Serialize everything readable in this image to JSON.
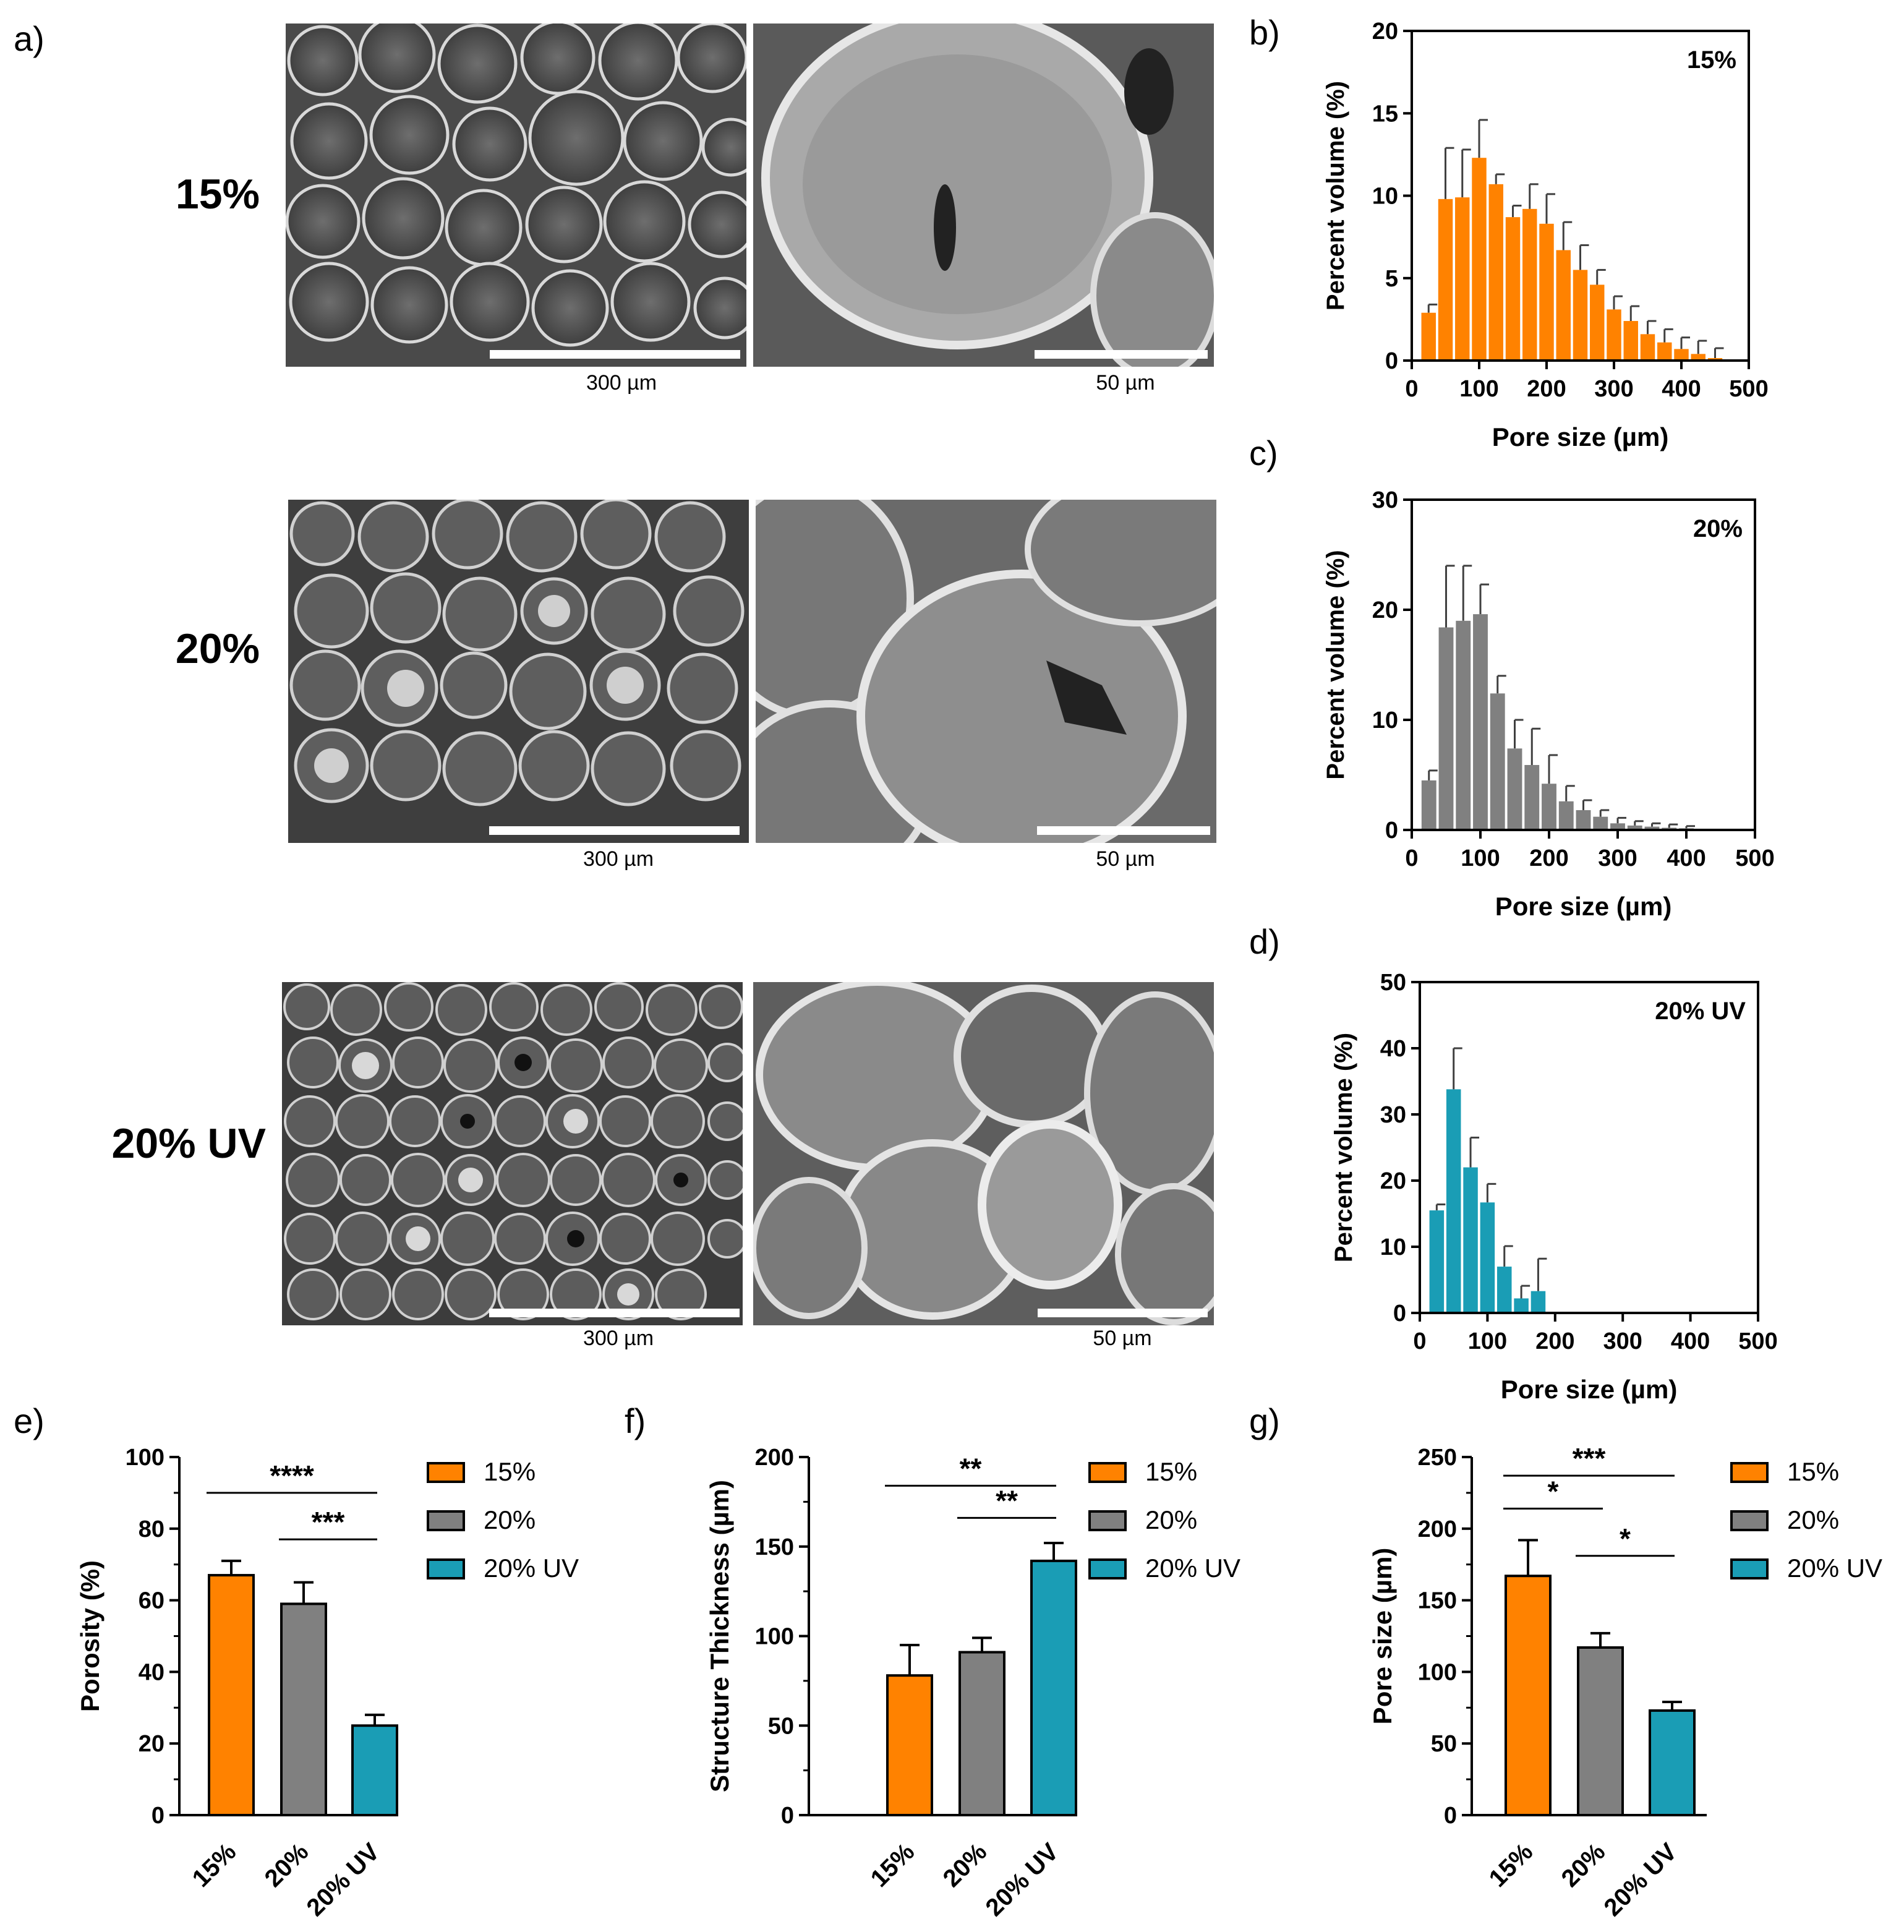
{
  "panel_labels": {
    "a": "a)",
    "b": "b)",
    "c": "c)",
    "d": "d)",
    "e": "e)",
    "f": "f)",
    "g": "g)"
  },
  "sem_rows": [
    {
      "label": "15%",
      "scale_left": "300 µm",
      "scale_right": "50 µm"
    },
    {
      "label": "20%",
      "scale_left": "300 µm",
      "scale_right": "50 µm"
    },
    {
      "label": "20% UV",
      "scale_left": "300 µm",
      "scale_right": "50 µm"
    }
  ],
  "colors": {
    "orange": "#FF8200",
    "gray": "#808080",
    "teal": "#1A9DB5",
    "axis": "#000000",
    "error": "#404040"
  },
  "chart_data": [
    {
      "id": "b",
      "type": "bar",
      "tag": "15%",
      "color": "#FF8200",
      "xlabel": "Pore size  (µm)",
      "ylabel": "Percent volume (%)",
      "xlim": [
        0,
        500
      ],
      "ylim": [
        0,
        20
      ],
      "xticks": [
        0,
        100,
        200,
        300,
        400,
        500
      ],
      "yticks": [
        0,
        5,
        10,
        15,
        20
      ],
      "x": [
        25,
        50,
        75,
        100,
        125,
        150,
        175,
        200,
        225,
        250,
        275,
        300,
        325,
        350,
        375,
        400,
        425,
        450
      ],
      "values": [
        2.9,
        9.8,
        9.9,
        12.3,
        10.7,
        8.7,
        9.2,
        8.3,
        6.7,
        5.5,
        4.6,
        3.1,
        2.4,
        1.6,
        1.1,
        0.7,
        0.4,
        0.15
      ],
      "errors": [
        0.5,
        3.1,
        2.9,
        2.3,
        0.6,
        0.7,
        1.5,
        1.8,
        1.7,
        1.5,
        0.9,
        0.8,
        0.9,
        0.8,
        0.8,
        0.7,
        0.8,
        0.6
      ]
    },
    {
      "id": "c",
      "type": "bar",
      "tag": "20%",
      "color": "#808080",
      "xlabel": "Pore size  (µm)",
      "ylabel": "Percent volume (%)",
      "xlim": [
        0,
        500
      ],
      "ylim": [
        0,
        30
      ],
      "xticks": [
        0,
        100,
        200,
        300,
        400,
        500
      ],
      "yticks": [
        0,
        10,
        20,
        30
      ],
      "x": [
        25,
        50,
        75,
        100,
        125,
        150,
        175,
        200,
        225,
        250,
        275,
        300,
        325,
        350,
        375,
        400
      ],
      "values": [
        4.5,
        18.4,
        19.0,
        19.6,
        12.4,
        7.4,
        5.9,
        4.2,
        2.6,
        1.8,
        1.2,
        0.6,
        0.4,
        0.3,
        0.2,
        0.15
      ],
      "errors": [
        0.9,
        5.6,
        5.0,
        2.7,
        1.6,
        2.6,
        3.3,
        2.6,
        1.4,
        0.9,
        0.6,
        0.5,
        0.4,
        0.3,
        0.3,
        0.2
      ]
    },
    {
      "id": "d",
      "type": "bar",
      "tag": "20% UV",
      "color": "#1A9DB5",
      "xlabel": "Pore size  (µm)",
      "ylabel": "Percent volume (%)",
      "xlim": [
        0,
        500
      ],
      "ylim": [
        0,
        50
      ],
      "xticks": [
        0,
        100,
        200,
        300,
        400,
        500
      ],
      "yticks": [
        0,
        10,
        20,
        30,
        40,
        50
      ],
      "x": [
        25,
        50,
        75,
        100,
        125,
        150,
        175
      ],
      "values": [
        15.5,
        33.8,
        22.0,
        16.7,
        7.0,
        2.2,
        3.3
      ],
      "errors": [
        0.9,
        6.2,
        4.5,
        2.8,
        3.1,
        1.9,
        4.9
      ]
    },
    {
      "id": "e",
      "type": "bar",
      "ylabel": "Porosity (%)",
      "ylim": [
        0,
        100
      ],
      "yticks": [
        0,
        20,
        40,
        60,
        80,
        100
      ],
      "categories": [
        "15%",
        "20%",
        "20% UV"
      ],
      "values": [
        67,
        59,
        25
      ],
      "errors": [
        4,
        6,
        3
      ],
      "bar_colors": [
        "#FF8200",
        "#808080",
        "#1A9DB5"
      ],
      "legend": [
        "15%",
        "20%",
        "20% UV"
      ],
      "significance": [
        {
          "from": 0,
          "to": 2,
          "label": "****",
          "level": 90
        },
        {
          "from": 1,
          "to": 2,
          "label": "***",
          "level": 77
        }
      ]
    },
    {
      "id": "f",
      "type": "bar",
      "ylabel": "Structure Thickness (µm)",
      "ylim": [
        0,
        200
      ],
      "yticks": [
        0,
        50,
        100,
        150,
        200
      ],
      "categories": [
        "15%",
        "20%",
        "20% UV"
      ],
      "values": [
        78,
        91,
        142
      ],
      "errors": [
        17,
        8,
        10
      ],
      "bar_colors": [
        "#FF8200",
        "#808080",
        "#1A9DB5"
      ],
      "legend": [
        "15%",
        "20%",
        "20% UV"
      ],
      "significance": [
        {
          "from": 0,
          "to": 2,
          "label": "**",
          "level": 184
        },
        {
          "from": 1,
          "to": 2,
          "label": "**",
          "level": 166
        }
      ]
    },
    {
      "id": "g",
      "type": "bar",
      "ylabel": "Pore size (µm)",
      "ylim": [
        0,
        250
      ],
      "yticks": [
        0,
        50,
        100,
        150,
        200,
        250
      ],
      "categories": [
        "15%",
        "20%",
        "20% UV"
      ],
      "values": [
        167,
        117,
        73
      ],
      "errors": [
        25,
        10,
        6
      ],
      "bar_colors": [
        "#FF8200",
        "#808080",
        "#1A9DB5"
      ],
      "legend": [
        "15%",
        "20%",
        "20% UV"
      ],
      "significance": [
        {
          "from": 0,
          "to": 2,
          "label": "***",
          "level": 237
        },
        {
          "from": 0,
          "to": 1,
          "label": "*",
          "level": 214
        },
        {
          "from": 1,
          "to": 2,
          "label": "*",
          "level": 181
        }
      ]
    }
  ]
}
